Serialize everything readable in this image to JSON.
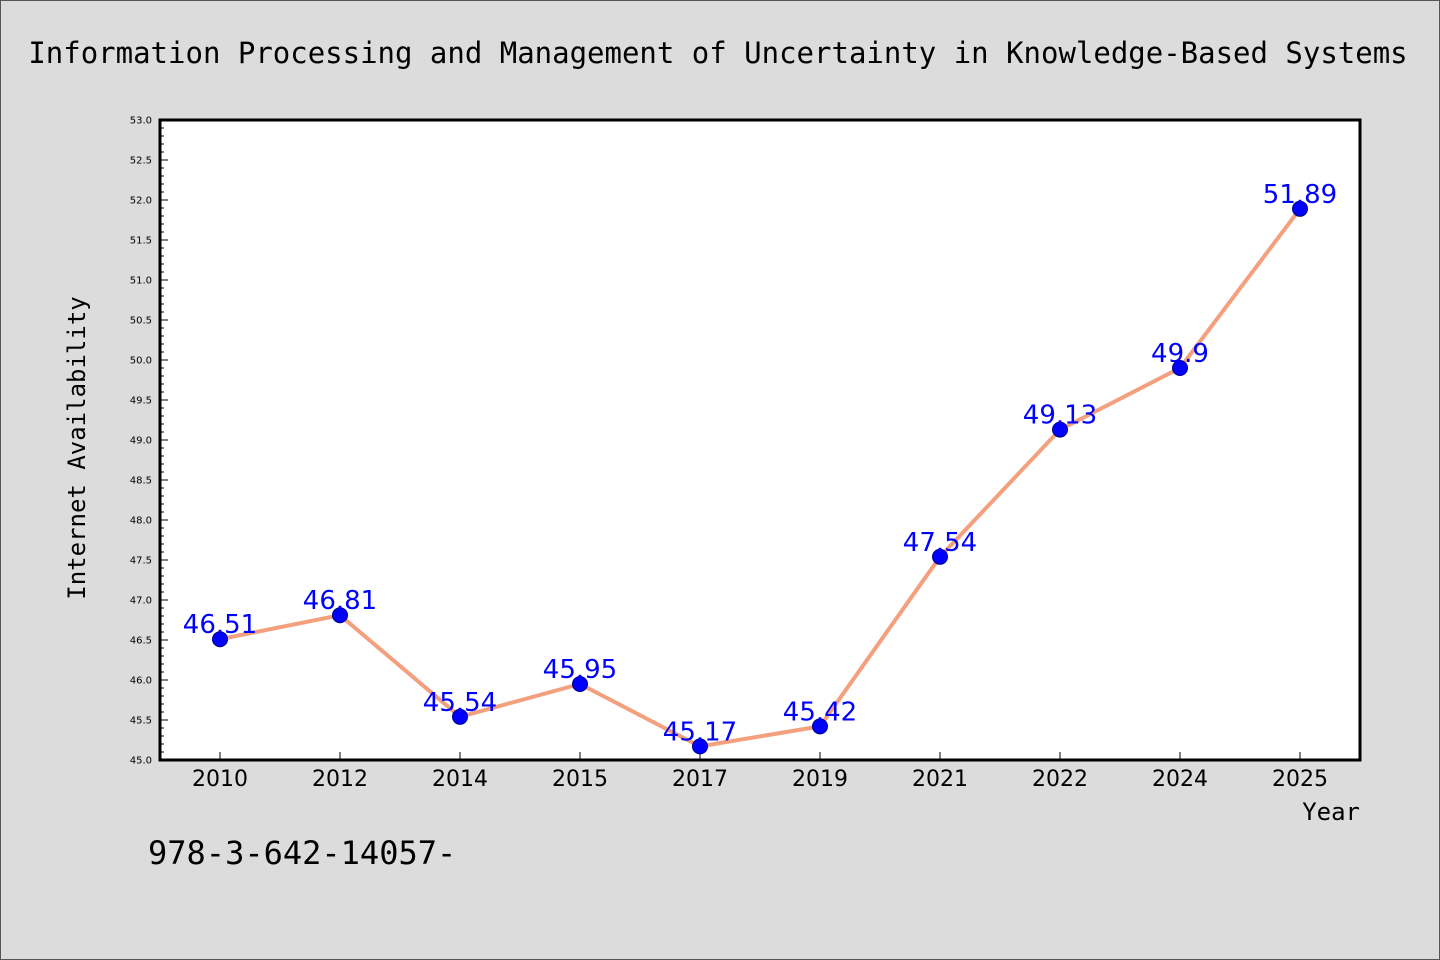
{
  "chart_data": {
    "type": "line",
    "title": "Information Processing and Management of Uncertainty in Knowledge-Based Systems",
    "xlabel": "Year",
    "ylabel": "Internet Availability",
    "categories": [
      "2010",
      "2012",
      "2014",
      "2015",
      "2017",
      "2019",
      "2021",
      "2022",
      "2024",
      "2025"
    ],
    "series": [
      {
        "values": [
          46.51,
          46.81,
          45.54,
          45.95,
          45.17,
          45.42,
          47.54,
          49.13,
          49.9,
          51.89
        ],
        "labels": [
          "46.51",
          "46.81",
          "45.54",
          "45.95",
          "45.17",
          "45.42",
          "47.54",
          "49.13",
          "49.9",
          "51.89"
        ],
        "line_color": "#f4a07e",
        "marker_color": "#0000ff",
        "label_color": "#0000ff"
      }
    ],
    "ylim": [
      45.0,
      53.0
    ],
    "yticks": [
      "45.0",
      "45.5",
      "46.0",
      "46.5",
      "47.0",
      "47.5",
      "48.0",
      "48.5",
      "49.0",
      "49.5",
      "50.0",
      "50.5",
      "51.0",
      "51.5",
      "52.0",
      "52.5",
      "53.0"
    ],
    "grid": false,
    "legend": "none"
  },
  "footnote": "978-3-642-14057-"
}
